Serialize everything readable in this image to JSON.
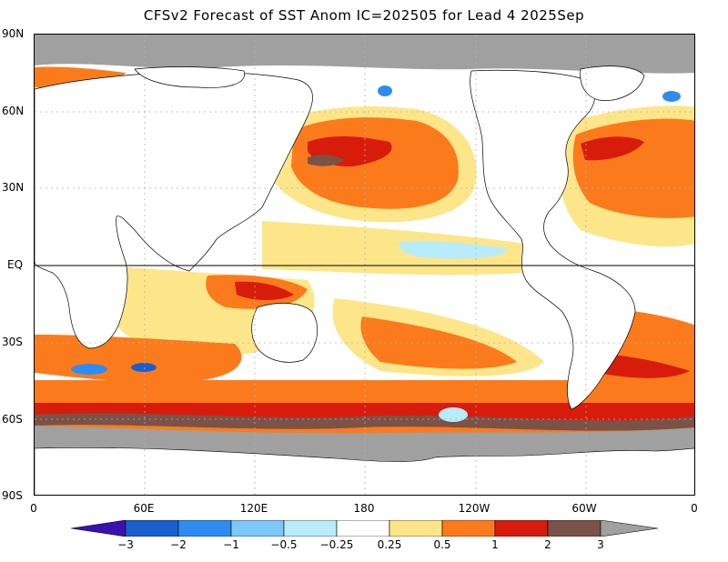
{
  "title": "CFSv2 Forecast of SST Anom IC=202505 for Lead 4 2025Sep",
  "axes": {
    "y_labels": [
      "90N",
      "60N",
      "30N",
      "EQ",
      "30S",
      "60S",
      "90S"
    ],
    "x_labels": [
      "0",
      "60E",
      "120E",
      "180",
      "120W",
      "60W",
      "0"
    ]
  },
  "colorbar": {
    "labels": [
      "−3",
      "−2",
      "−1",
      "−0.5",
      "−0.25",
      "0.25",
      "0.5",
      "1",
      "2",
      "3"
    ],
    "colors": [
      "#3b10b0",
      "#1a5fd0",
      "#2e8cf0",
      "#7dc8f8",
      "#b8ecfa",
      "#ffffff",
      "#fde68a",
      "#fb7b1c",
      "#d81c0c",
      "#7a5248",
      "#a0a0a0"
    ]
  },
  "colors": {
    "land": "#ffffff",
    "ice": "#a0a0a0",
    "pos_025": "#fde68a",
    "pos_05": "#fb7b1c",
    "pos_1": "#d81c0c",
    "pos_2": "#7a5248",
    "neg_025": "#b8ecfa",
    "neg_05": "#7dc8f8",
    "neg_1": "#2e8cf0",
    "neg_2": "#1a5fd0"
  }
}
